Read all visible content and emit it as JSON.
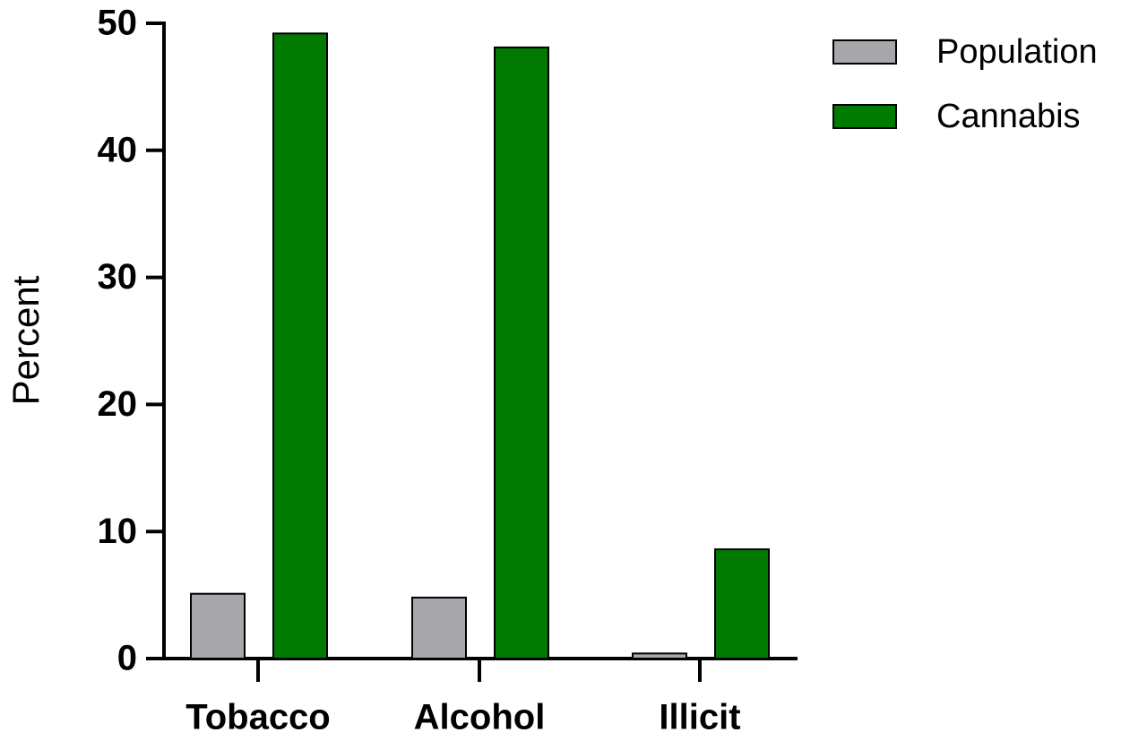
{
  "chart_data": {
    "type": "bar",
    "y_label": "Percent",
    "categories": [
      "Tobacco",
      "Alcohol",
      "Illicit"
    ],
    "series": [
      {
        "name": "Population",
        "color": "#a6a6ab",
        "values": [
          5.1,
          4.8,
          0.4
        ]
      },
      {
        "name": "Cannabis",
        "color": "#007a00",
        "values": [
          49.2,
          48.1,
          8.6
        ]
      }
    ],
    "ylim": [
      0,
      50
    ],
    "yticks": [
      0,
      10,
      20,
      30,
      40,
      50
    ],
    "grid": false,
    "legend": "top-right"
  }
}
